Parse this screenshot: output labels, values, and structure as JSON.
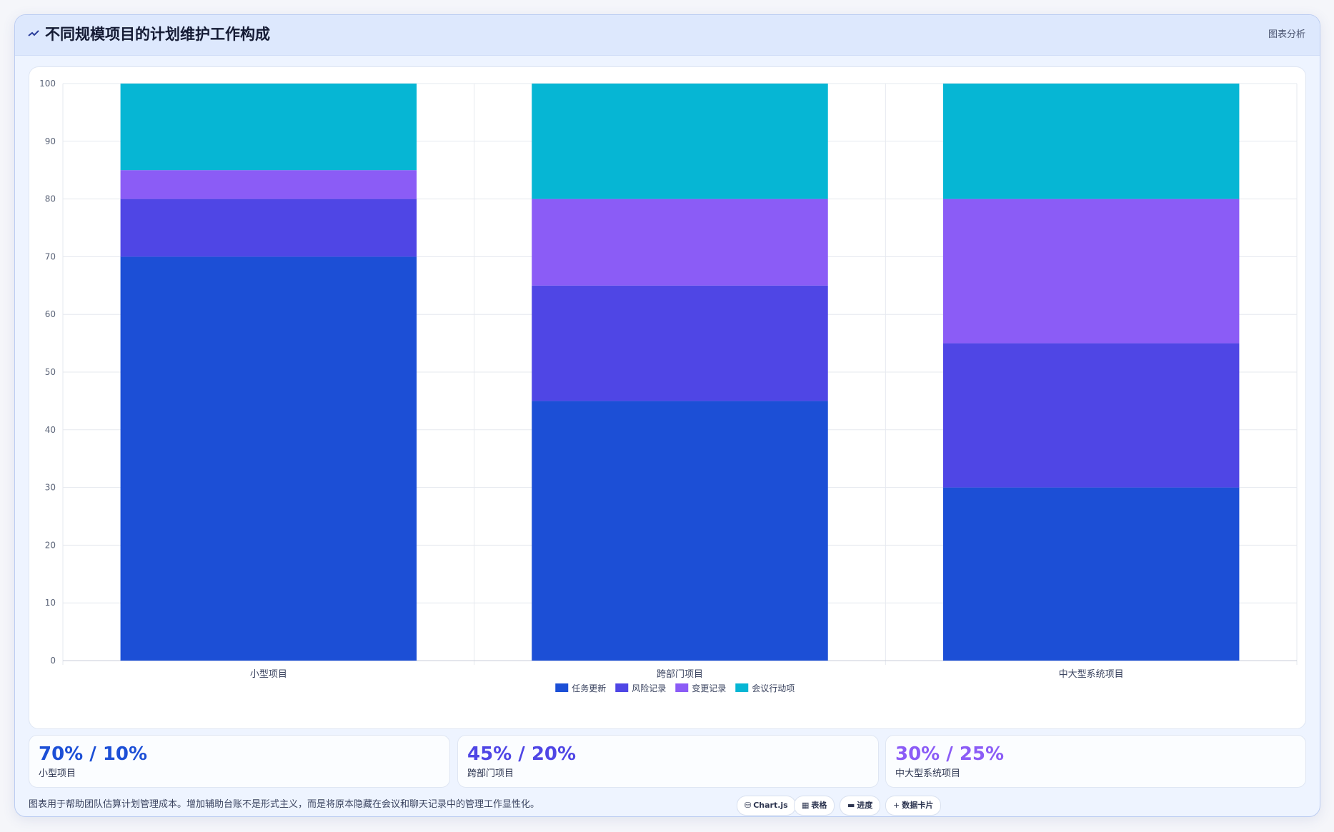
{
  "header": {
    "title_icon": "chart-line-icon",
    "title": "不同规模项目的计划维护工作构成",
    "analysis_link": "图表分析"
  },
  "chart_data": {
    "type": "bar",
    "stacked": true,
    "categories": [
      "小型项目",
      "跨部门项目",
      "中大型系统项目"
    ],
    "series": [
      {
        "name": "任务更新",
        "color": "#1c4fd6",
        "values": [
          70,
          45,
          30
        ]
      },
      {
        "name": "风险记录",
        "color": "#4f46e5",
        "values": [
          10,
          20,
          25
        ]
      },
      {
        "name": "变更记录",
        "color": "#8b5cf6",
        "values": [
          5,
          15,
          25
        ]
      },
      {
        "name": "会议行动项",
        "color": "#06b6d4",
        "values": [
          15,
          20,
          20
        ]
      }
    ],
    "ylim": [
      0,
      100
    ],
    "yticks": [
      0,
      10,
      20,
      30,
      40,
      50,
      60,
      70,
      80,
      90,
      100
    ],
    "grid": true,
    "legend": "bottom"
  },
  "stats": [
    {
      "value": "70% / 10%",
      "label": "小型项目",
      "color": "#1c4fd6"
    },
    {
      "value": "45% / 20%",
      "label": "跨部门项目",
      "color": "#4f46e5"
    },
    {
      "value": "30% / 25%",
      "label": "中大型系统项目",
      "color": "#8b5cf6"
    }
  ],
  "footer": {
    "text": "图表用于帮助团队估算计划管理成本。增加辅助台账不是形式主义，而是将原本隐藏在会议和聊天记录中的管理工作显性化。",
    "pills": [
      {
        "icon": "database-icon",
        "glyph": "⛁",
        "label": "Chart.js"
      },
      {
        "icon": "table-icon",
        "glyph": "▦",
        "label": "表格"
      },
      {
        "icon": "progress-icon",
        "glyph": "▬",
        "label": "进度"
      },
      {
        "icon": "plus-icon",
        "glyph": "+",
        "label": "数据卡片"
      }
    ]
  }
}
